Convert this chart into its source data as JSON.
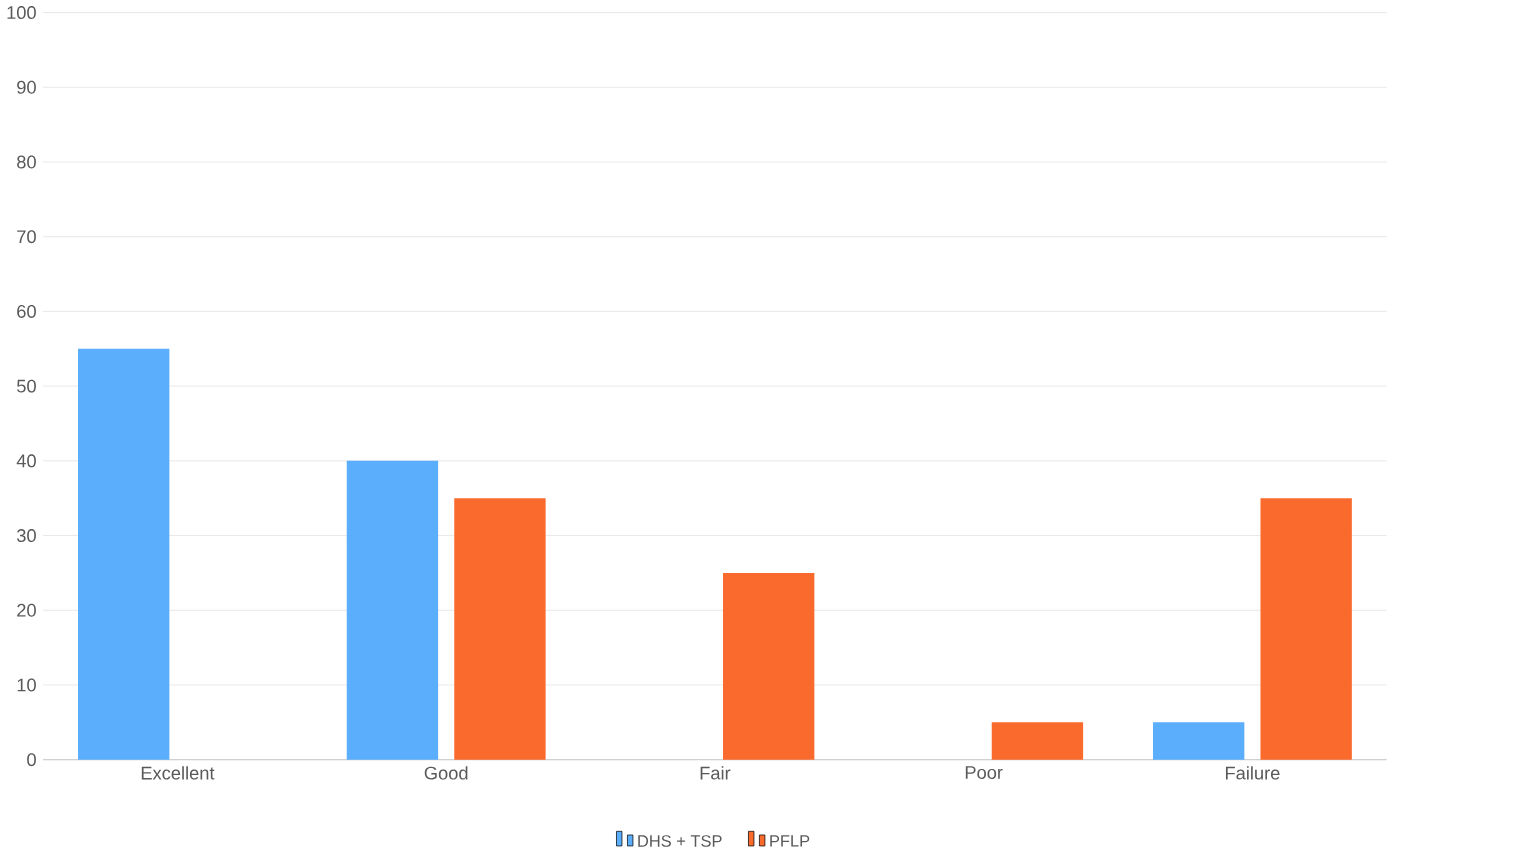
{
  "chart_data": {
    "type": "bar",
    "categories": [
      "Excellent",
      "Good",
      "Fair",
      "Poor",
      "Failure"
    ],
    "series": [
      {
        "name": "DHS + TSP",
        "color": "#5aaefc",
        "values": [
          55,
          40,
          0,
          0,
          5
        ]
      },
      {
        "name": "PFLP",
        "color": "#fa6a2c",
        "values": [
          0,
          35,
          25,
          5,
          35
        ]
      }
    ],
    "ylim": [
      0,
      100
    ],
    "yticks": [
      0,
      10,
      20,
      30,
      40,
      50,
      60,
      70,
      80,
      90,
      100
    ],
    "grid": "y",
    "legend": "bottom"
  }
}
